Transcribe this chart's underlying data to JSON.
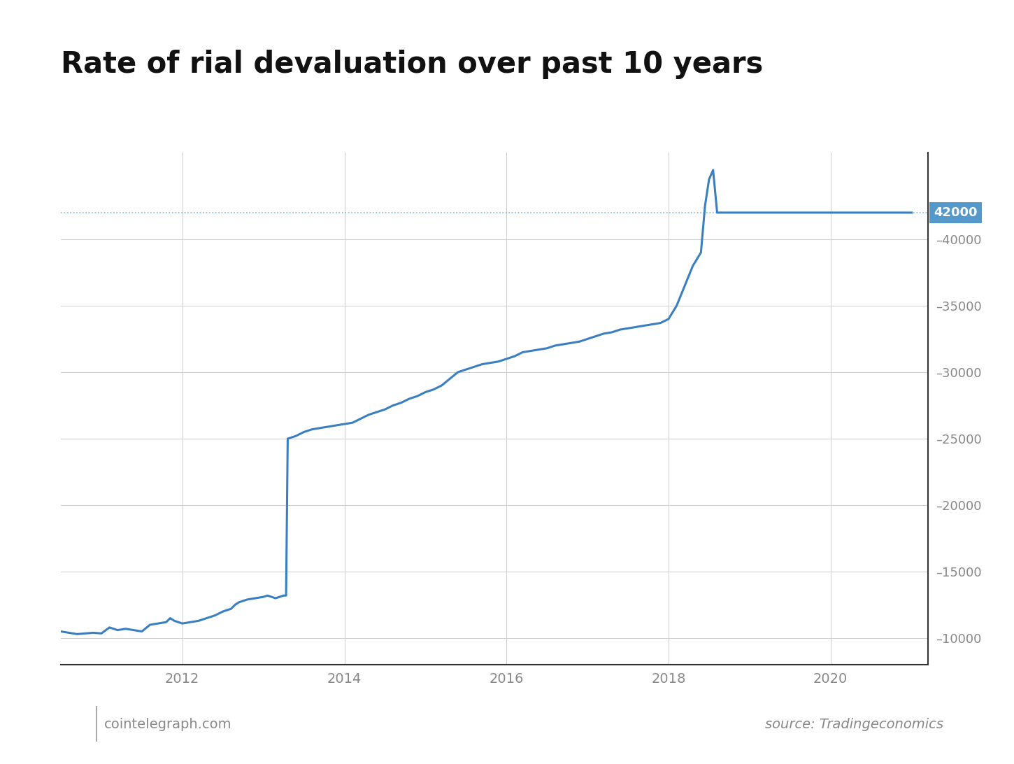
{
  "title": "Rate of rial devaluation over past 10 years",
  "title_fontsize": 30,
  "title_fontweight": "bold",
  "background_color": "#ffffff",
  "line_color": "#3a7fc1",
  "line_color_light": "#89bde0",
  "dotted_line_color": "#7ab8d9",
  "label_value": 42000,
  "label_bg_color": "#5599cc",
  "label_text_color": "#ffffff",
  "source_text": "source: Tradingeconomics",
  "footer_text": "cointelegraph.com",
  "yticks": [
    10000,
    15000,
    20000,
    25000,
    30000,
    35000,
    40000
  ],
  "xtick_labels": [
    "2012",
    "2014",
    "2016",
    "2018",
    "2020"
  ],
  "ylim": [
    8000,
    46500
  ],
  "xlim_start": 2010.5,
  "xlim_end": 2021.2,
  "series": [
    [
      2010.5,
      10500
    ],
    [
      2010.7,
      10300
    ],
    [
      2010.9,
      10400
    ],
    [
      2011.0,
      10350
    ],
    [
      2011.1,
      10800
    ],
    [
      2011.2,
      10600
    ],
    [
      2011.3,
      10700
    ],
    [
      2011.5,
      10500
    ],
    [
      2011.6,
      11000
    ],
    [
      2011.7,
      11100
    ],
    [
      2011.8,
      11200
    ],
    [
      2011.85,
      11500
    ],
    [
      2011.9,
      11300
    ],
    [
      2012.0,
      11100
    ],
    [
      2012.1,
      11200
    ],
    [
      2012.2,
      11300
    ],
    [
      2012.3,
      11500
    ],
    [
      2012.4,
      11700
    ],
    [
      2012.5,
      12000
    ],
    [
      2012.6,
      12200
    ],
    [
      2012.65,
      12500
    ],
    [
      2012.7,
      12700
    ],
    [
      2012.8,
      12900
    ],
    [
      2012.9,
      13000
    ],
    [
      2013.0,
      13100
    ],
    [
      2013.05,
      13200
    ],
    [
      2013.1,
      13100
    ],
    [
      2013.15,
      13000
    ],
    [
      2013.2,
      13100
    ],
    [
      2013.25,
      13200
    ],
    [
      2013.28,
      13200
    ],
    [
      2013.3,
      25000
    ],
    [
      2013.4,
      25200
    ],
    [
      2013.5,
      25500
    ],
    [
      2013.6,
      25700
    ],
    [
      2013.7,
      25800
    ],
    [
      2013.8,
      25900
    ],
    [
      2013.9,
      26000
    ],
    [
      2014.0,
      26100
    ],
    [
      2014.1,
      26200
    ],
    [
      2014.2,
      26500
    ],
    [
      2014.3,
      26800
    ],
    [
      2014.4,
      27000
    ],
    [
      2014.5,
      27200
    ],
    [
      2014.6,
      27500
    ],
    [
      2014.7,
      27700
    ],
    [
      2014.8,
      28000
    ],
    [
      2014.9,
      28200
    ],
    [
      2015.0,
      28500
    ],
    [
      2015.1,
      28700
    ],
    [
      2015.2,
      29000
    ],
    [
      2015.3,
      29500
    ],
    [
      2015.4,
      30000
    ],
    [
      2015.5,
      30200
    ],
    [
      2015.6,
      30400
    ],
    [
      2015.7,
      30600
    ],
    [
      2015.8,
      30700
    ],
    [
      2015.9,
      30800
    ],
    [
      2016.0,
      31000
    ],
    [
      2016.1,
      31200
    ],
    [
      2016.2,
      31500
    ],
    [
      2016.3,
      31600
    ],
    [
      2016.4,
      31700
    ],
    [
      2016.5,
      31800
    ],
    [
      2016.6,
      32000
    ],
    [
      2016.7,
      32100
    ],
    [
      2016.8,
      32200
    ],
    [
      2016.9,
      32300
    ],
    [
      2017.0,
      32500
    ],
    [
      2017.1,
      32700
    ],
    [
      2017.2,
      32900
    ],
    [
      2017.3,
      33000
    ],
    [
      2017.4,
      33200
    ],
    [
      2017.5,
      33300
    ],
    [
      2017.6,
      33400
    ],
    [
      2017.7,
      33500
    ],
    [
      2017.8,
      33600
    ],
    [
      2017.9,
      33700
    ],
    [
      2018.0,
      34000
    ],
    [
      2018.1,
      35000
    ],
    [
      2018.2,
      36500
    ],
    [
      2018.3,
      38000
    ],
    [
      2018.4,
      39000
    ],
    [
      2018.45,
      42500
    ],
    [
      2018.5,
      44500
    ],
    [
      2018.55,
      45200
    ],
    [
      2018.6,
      42000
    ],
    [
      2018.7,
      42000
    ],
    [
      2018.8,
      42000
    ],
    [
      2018.9,
      42000
    ],
    [
      2019.0,
      42000
    ],
    [
      2019.5,
      42000
    ],
    [
      2020.0,
      42000
    ],
    [
      2020.5,
      42000
    ],
    [
      2021.0,
      42000
    ]
  ]
}
